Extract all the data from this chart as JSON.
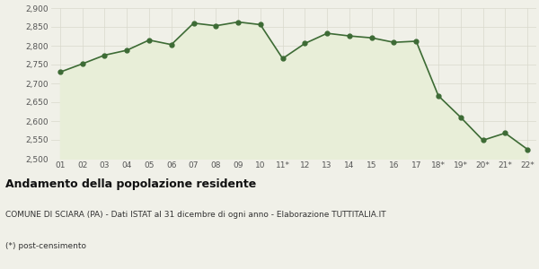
{
  "x_labels": [
    "01",
    "02",
    "03",
    "04",
    "05",
    "06",
    "07",
    "08",
    "09",
    "10",
    "11*",
    "12",
    "13",
    "14",
    "15",
    "16",
    "17",
    "18*",
    "19*",
    "20*",
    "21*",
    "22*"
  ],
  "values": [
    2730,
    2752,
    2775,
    2788,
    2815,
    2803,
    2860,
    2853,
    2863,
    2856,
    2766,
    2806,
    2833,
    2826,
    2821,
    2809,
    2812,
    2667,
    2610,
    2549,
    2568,
    2525
  ],
  "line_color": "#3d6b35",
  "fill_color": "#e8eed8",
  "marker_color": "#3d6b35",
  "background_color": "#f0f0e8",
  "plot_bg_color": "#f0f0e8",
  "grid_color": "#d8d8cc",
  "ylim": [
    2500,
    2900
  ],
  "yticks": [
    2500,
    2550,
    2600,
    2650,
    2700,
    2750,
    2800,
    2850,
    2900
  ],
  "title": "Andamento della popolazione residente",
  "subtitle": "COMUNE DI SCIARA (PA) - Dati ISTAT al 31 dicembre di ogni anno - Elaborazione TUTTITALIA.IT",
  "footnote": "(*) post-censimento",
  "title_fontsize": 9,
  "subtitle_fontsize": 6.5,
  "footnote_fontsize": 6.5,
  "tick_fontsize": 6.5,
  "marker_size": 3.5,
  "linewidth": 1.2
}
